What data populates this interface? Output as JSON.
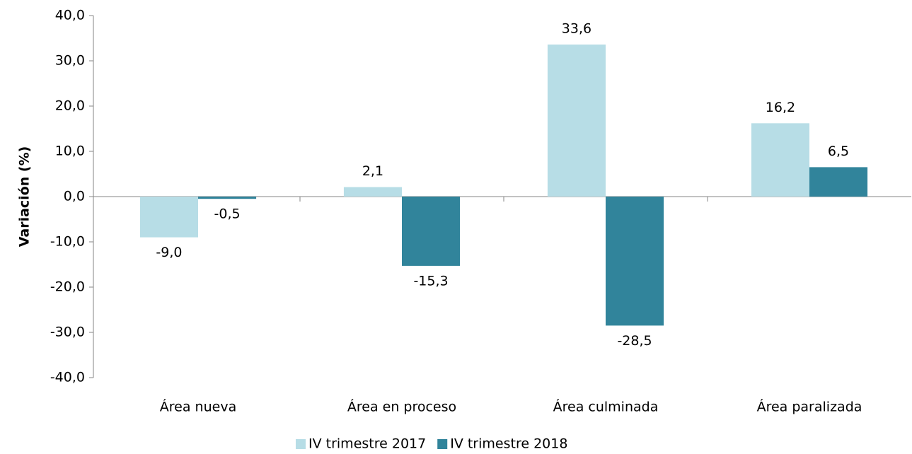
{
  "chart_data": {
    "type": "bar",
    "y_label": "Variación (%)",
    "categories": [
      "Área nueva",
      "Área en proceso",
      "Área culminada",
      "Área paralizada"
    ],
    "series": [
      {
        "name": "IV trimestre 2017",
        "color": "#b7dde6",
        "values": [
          -9.0,
          2.1,
          33.6,
          16.2
        ],
        "value_labels": [
          "-9,0",
          "2,1",
          "33,6",
          "16,2"
        ]
      },
      {
        "name": "IV trimestre 2018",
        "color": "#31849b",
        "values": [
          -0.5,
          -15.3,
          -28.5,
          6.5
        ],
        "value_labels": [
          "-0,5",
          "-15,3",
          "-28,5",
          "6,5"
        ]
      }
    ],
    "ylim": [
      -40,
      40
    ],
    "yticks": [
      {
        "value": -40,
        "label": "-40,0"
      },
      {
        "value": -30,
        "label": "-30,0"
      },
      {
        "value": -20,
        "label": "-20,0"
      },
      {
        "value": -10,
        "label": "-10,0"
      },
      {
        "value": 0,
        "label": "0,0"
      },
      {
        "value": 10,
        "label": "10,0"
      },
      {
        "value": 20,
        "label": "20,0"
      },
      {
        "value": 30,
        "label": "30,0"
      },
      {
        "value": 40,
        "label": "40,0"
      }
    ],
    "legend": "bottom"
  }
}
